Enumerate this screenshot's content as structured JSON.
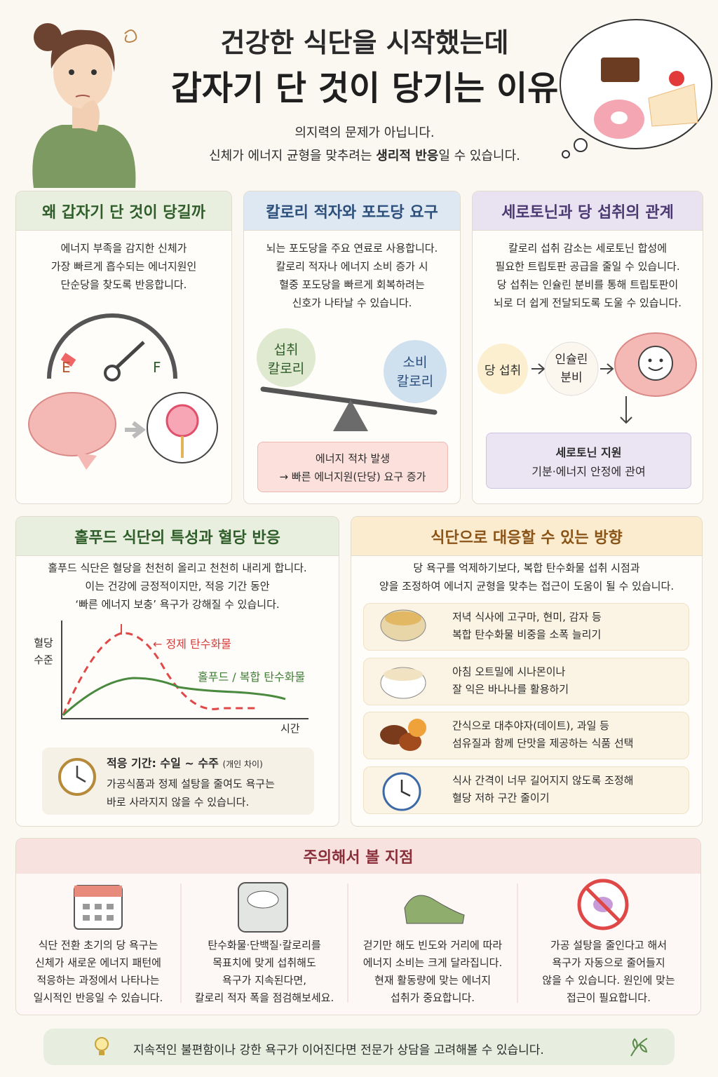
{
  "header": {
    "title_line1": "건강한 식단을 시작했는데",
    "title_line2": "갑자기 단 것이 당기는 이유",
    "subtitle_line1": "의지력의 문제가 아닙니다.",
    "subtitle_line2_pre": "신체가 에너지 균형을 맞추려는 ",
    "subtitle_line2_emphasis": "생리적 반응",
    "subtitle_line2_post": "일 수 있습니다."
  },
  "why": {
    "title": "왜 갑자기 단 것이 당길까",
    "body": [
      "에너지 부족을 감지한 신체가",
      "가장 빠르게 흡수되는 에너지원인",
      "단순당을 찾도록 반응합니다."
    ],
    "gauge_empty": "E",
    "gauge_full": "F"
  },
  "deficit": {
    "title": "칼로리 적자와 포도당 요구",
    "body": [
      "뇌는 포도당을 주요 연료로 사용합니다.",
      "칼로리 적자나 에너지 소비 증가 시",
      "혈중 포도당을 빠르게 회복하려는",
      "신호가 나타날 수 있습니다."
    ],
    "intake": [
      "섭취",
      "칼로리"
    ],
    "expenditure": [
      "소비",
      "칼로리"
    ],
    "result": [
      "에너지 적차 발생",
      "→ 빠른 에너지원(단당) 요구 증가"
    ]
  },
  "serotonin": {
    "title": "세로토닌과 당 섭취의 관계",
    "body": [
      "칼로리 섭취 감소는 세로토닌 합성에",
      "필요한 트립토판 공급을 줄일 수 있습니다.",
      "당 섭취는 인슐린 분비를 통해 트립토판이",
      "뇌로 더 쉽게 전달되도록 도울 수 있습니다."
    ],
    "step1": "당 섭취",
    "step2": [
      "인슐린",
      "분비"
    ],
    "result_title": "세로토닌 지원",
    "result_body": "기분·에너지 안정에 관여"
  },
  "wholefood": {
    "title": "홀푸드 식단의 특성과 혈당 반응",
    "body": [
      "홀푸드 식단은 혈당을 천천히 올리고 천천히 내리게 합니다.",
      "이는 건강에 긍정적이지만, 적응 기간 동안",
      "‘빠른 에너지 보충’ 욕구가 강해질 수 있습니다."
    ],
    "y_label": [
      "혈당",
      "수준"
    ],
    "x_label": "시간",
    "refined_label": "← 정제 탄수화물",
    "whole_label": "홀푸드 / 복합 탄수화물",
    "note_title": "적응 기간: 수일 ~ 수주",
    "note_sub": "(개인 차이)",
    "note_body": [
      "가공식품과 정제 설탕을 줄여도 욕구는",
      "바로 사라지지 않을 수 있습니다."
    ]
  },
  "strategies": {
    "title": "식단으로 대응할 수 있는 방향",
    "intro": [
      "당 욕구를 억제하기보다, 복합 탄수화물 섭취 시점과",
      "양을 조정하여 에너지 균형을 맞추는 접근이 도움이 될 수 있습니다."
    ],
    "items": [
      [
        "저녁 식사에 고구마, 현미, 감자 등",
        "복합 탄수화물 비중을 소폭 늘리기"
      ],
      [
        "아침 오트밀에 시나몬이나",
        "잘 익은 바나나를 활용하기"
      ],
      [
        "간식으로 대추야자(데이트), 과일 등",
        "섬유질과 함께 단맛을 제공하는 식품 선택"
      ],
      [
        "식사 간격이 너무 길어지지 않도록 조정해",
        "혈당 저하 구간 줄이기"
      ]
    ]
  },
  "cautions": {
    "title": "주의해서 볼 지점",
    "items": [
      [
        "식단 전환 초기의 당 욕구는",
        "신체가 새로운 에너지 패턴에",
        "적응하는 과정에서 나타나는",
        "일시적인 반응일 수 있습니다."
      ],
      [
        "탄수화물·단백질·칼로리를",
        "목표치에 맞게 섭취해도",
        "욕구가 지속된다면,",
        "칼로리 적자 폭을 점검해보세요."
      ],
      [
        "걷기만 해도 빈도와 거리에 따라",
        "에너지 소비는 크게 달라집니다.",
        "현재 활동량에 맞는 에너지",
        "섭취가 중요합니다."
      ],
      [
        "가공 설탕을 줄인다고 해서",
        "욕구가 자동으로 줄어들지",
        "않을 수 있습니다. 원인에 맞는",
        "접근이 필요합니다."
      ]
    ]
  },
  "footer": {
    "text": "지속적인 불편함이나 강한 욕구가 이어진다면 전문가 상담을 고려해볼 수 있습니다."
  }
}
